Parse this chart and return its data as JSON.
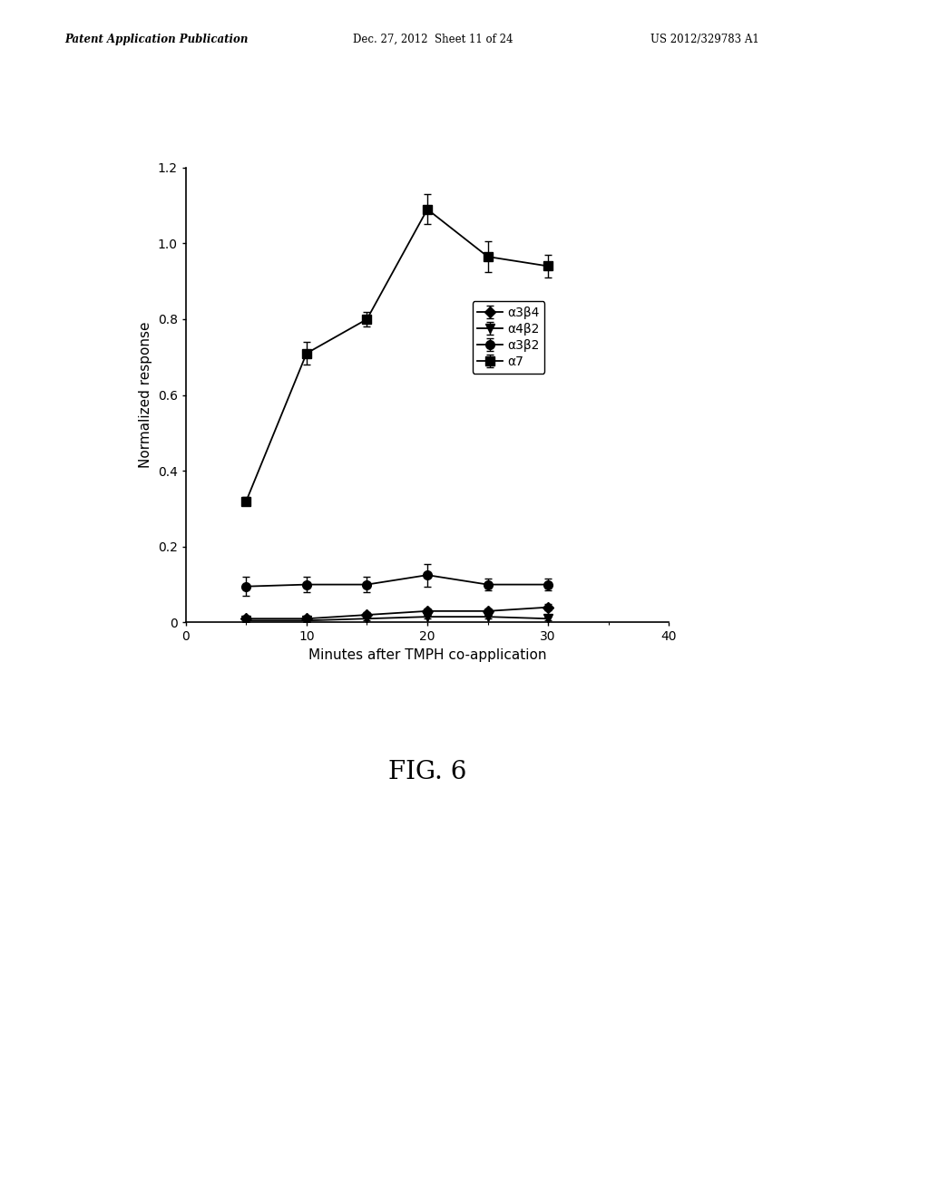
{
  "title_header_left": "Patent Application Publication",
  "title_header_mid": "Dec. 27, 2012  Sheet 11 of 24",
  "title_header_right": "US 2012/329783 A1",
  "fig_label": "FIG. 6",
  "xlabel": "Minutes after TMPH co-application",
  "ylabel": "Normalized response",
  "xlim": [
    0,
    40
  ],
  "ylim": [
    0,
    1.2
  ],
  "xticks": [
    0,
    10,
    20,
    30,
    40
  ],
  "yticks": [
    0,
    0.2,
    0.4,
    0.6,
    0.8,
    1.0,
    1.2
  ],
  "series": [
    {
      "label": "α3β4",
      "x": [
        5,
        10,
        15,
        20,
        25,
        30
      ],
      "y": [
        0.01,
        0.01,
        0.02,
        0.03,
        0.03,
        0.04
      ],
      "yerr": [
        0.008,
        0.008,
        0.008,
        0.008,
        0.008,
        0.008
      ],
      "marker": "D",
      "markersize": 6,
      "color": "#000000",
      "linestyle": "-",
      "linewidth": 1.3
    },
    {
      "label": "α4β2",
      "x": [
        5,
        10,
        15,
        20,
        25,
        30
      ],
      "y": [
        0.005,
        0.005,
        0.01,
        0.015,
        0.015,
        0.01
      ],
      "yerr": [
        0.005,
        0.005,
        0.005,
        0.005,
        0.005,
        0.005
      ],
      "marker": "v",
      "markersize": 7,
      "color": "#000000",
      "linestyle": "-",
      "linewidth": 1.3
    },
    {
      "label": "α3β2",
      "x": [
        5,
        10,
        15,
        20,
        25,
        30
      ],
      "y": [
        0.095,
        0.1,
        0.1,
        0.125,
        0.1,
        0.1
      ],
      "yerr": [
        0.025,
        0.02,
        0.02,
        0.03,
        0.015,
        0.015
      ],
      "marker": "o",
      "markersize": 7,
      "color": "#000000",
      "linestyle": "-",
      "linewidth": 1.3
    },
    {
      "label": "α7",
      "x": [
        5,
        10,
        15,
        20,
        25,
        30
      ],
      "y": [
        0.32,
        0.71,
        0.8,
        1.09,
        0.965,
        0.94
      ],
      "yerr": [
        0.01,
        0.03,
        0.02,
        0.04,
        0.04,
        0.03
      ],
      "marker": "s",
      "markersize": 7,
      "color": "#000000",
      "linestyle": "-",
      "linewidth": 1.3
    }
  ],
  "background_color": "#ffffff",
  "font_color": "#000000",
  "font_size_axis_label": 11,
  "font_size_tick": 10,
  "font_size_legend": 10,
  "font_size_fig_label": 20,
  "font_size_header": 8.5
}
